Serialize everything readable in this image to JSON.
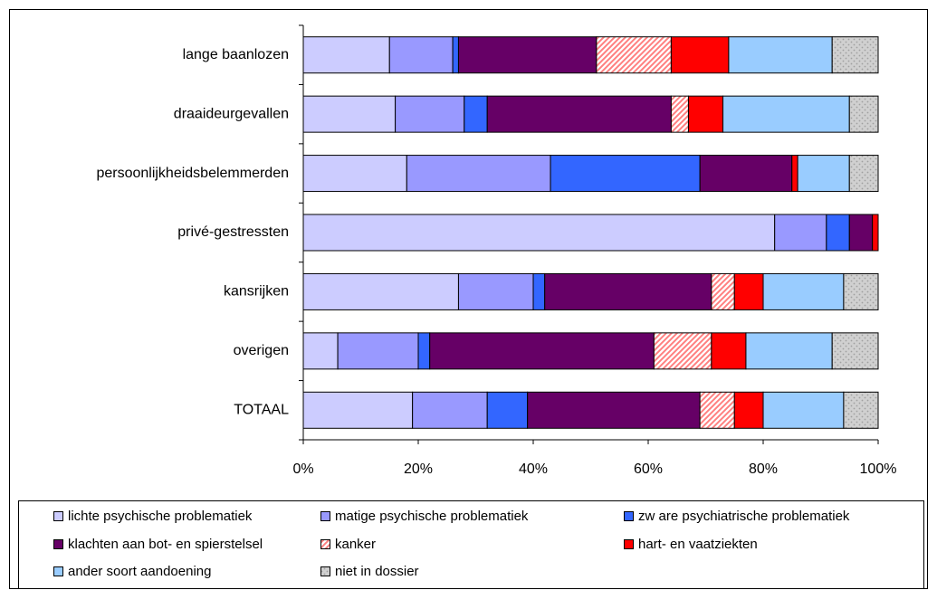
{
  "chart_data": {
    "type": "stacked-barh",
    "categories": [
      "lange baanlozen",
      "draaideurgevallen",
      "persoonlijkheidsbelemmerden",
      "privé-gestressten",
      "kansrijken",
      "overigen",
      "TOTAAL"
    ],
    "series": [
      {
        "name": "lichte psychische problematiek",
        "color": "#ccccff",
        "values": [
          15,
          16,
          18,
          82,
          27,
          6,
          19
        ]
      },
      {
        "name": "matige psychische problematiek",
        "color": "#9999ff",
        "values": [
          11,
          12,
          25,
          9,
          13,
          14,
          13
        ]
      },
      {
        "name": "zw are psychiatrische problematiek",
        "color": "#3366ff",
        "values": [
          1,
          4,
          26,
          4,
          2,
          2,
          7
        ]
      },
      {
        "name": "klachten aan bot- en spierstelsel",
        "color": "#660066",
        "values": [
          24,
          32,
          16,
          4,
          29,
          39,
          30
        ]
      },
      {
        "name": "kanker",
        "color": "#ff8080",
        "pattern": "hatch",
        "values": [
          13,
          3,
          0,
          0,
          4,
          10,
          6
        ]
      },
      {
        "name": "hart- en vaatziekten",
        "color": "#ff0000",
        "values": [
          10,
          6,
          1,
          1,
          5,
          6,
          5
        ]
      },
      {
        "name": "ander soort aandoening",
        "color": "#99ccff",
        "values": [
          18,
          22,
          9,
          0,
          14,
          15,
          14
        ]
      },
      {
        "name": "niet in dossier",
        "color": "#a0a0a0",
        "pattern": "dots",
        "values": [
          8,
          5,
          5,
          0,
          6,
          8,
          6
        ]
      }
    ],
    "xlim": [
      0,
      100
    ],
    "xticks": [
      {
        "value": 0,
        "label": "0%"
      },
      {
        "value": 20,
        "label": "20%"
      },
      {
        "value": 40,
        "label": "40%"
      },
      {
        "value": 60,
        "label": "60%"
      },
      {
        "value": 80,
        "label": "80%"
      },
      {
        "value": 100,
        "label": "100%"
      }
    ]
  }
}
